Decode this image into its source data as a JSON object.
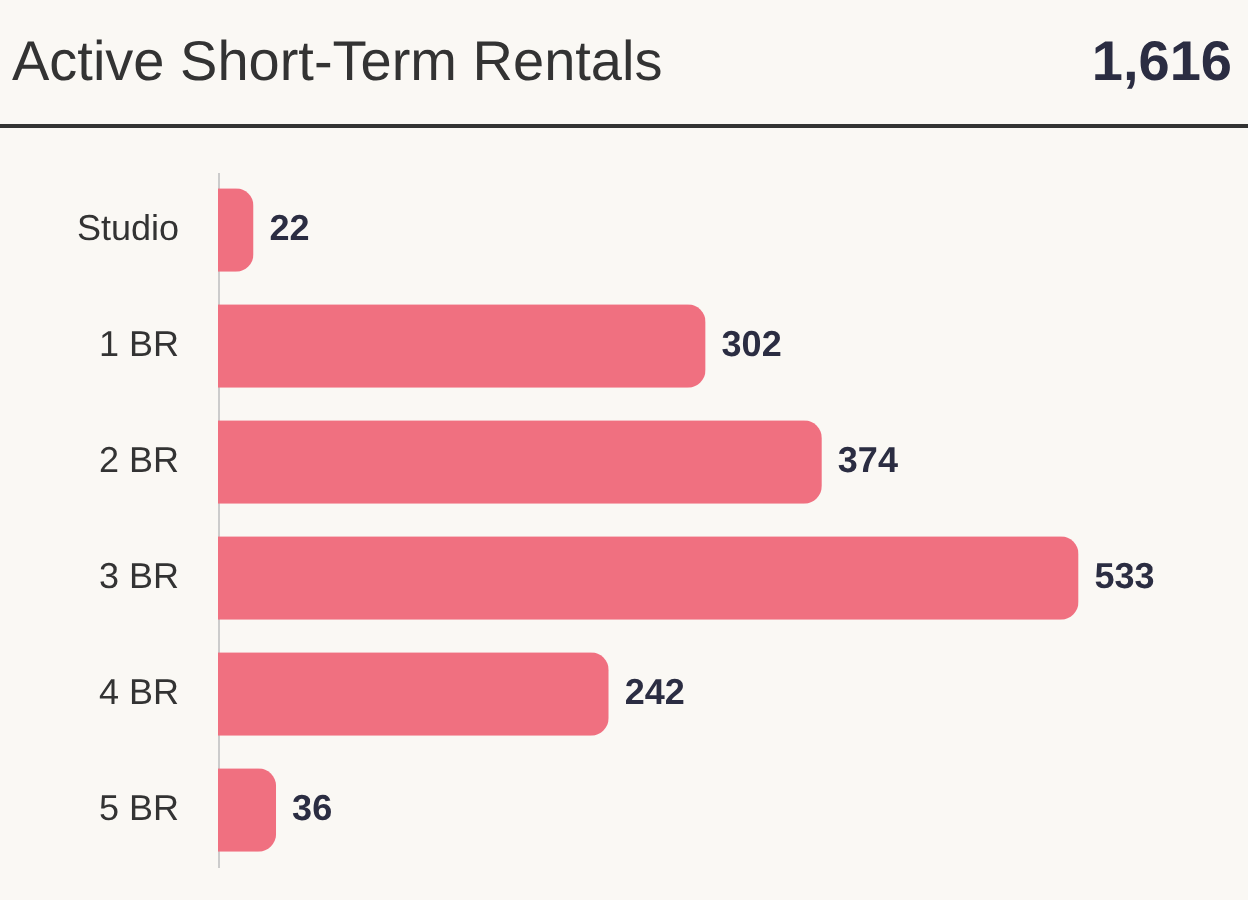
{
  "chart_data": {
    "type": "bar",
    "orientation": "horizontal",
    "title": "Active Short-Term Rentals",
    "annotations": [
      "1,616"
    ],
    "categories": [
      "Studio",
      "1 BR",
      "2 BR",
      "3 BR",
      "4 BR",
      "5 BR"
    ],
    "values": [
      22,
      302,
      374,
      533,
      242,
      36
    ],
    "color": "#f07080",
    "data_labels": true
  }
}
